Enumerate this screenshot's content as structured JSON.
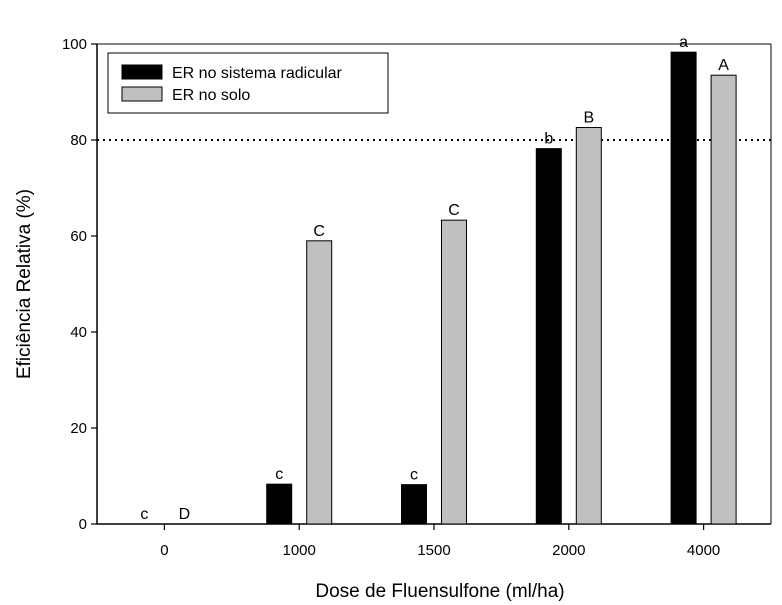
{
  "chart_data": {
    "type": "bar",
    "title": "",
    "xlabel": "Dose de Fluensulfone (ml/ha)",
    "ylabel": "Eficiência Relativa (%)",
    "ylim": [
      0,
      100
    ],
    "yticks": [
      "0",
      "20",
      "40",
      "60",
      "80",
      "100"
    ],
    "categories": [
      "0",
      "1000",
      "1500",
      "2000",
      "4000"
    ],
    "series": [
      {
        "name": "ER no sistema radicular",
        "color": "#000000",
        "values": [
          0,
          8.3,
          8.2,
          78.2,
          98.3
        ],
        "letters": [
          "c",
          "c",
          "c",
          "b",
          "a"
        ]
      },
      {
        "name": "ER no solo",
        "color": "#c0c0c0",
        "values": [
          0,
          59.0,
          63.3,
          82.6,
          93.5
        ],
        "letters": [
          "D",
          "C",
          "C",
          "B",
          "A"
        ]
      }
    ],
    "reference_line": {
      "value": 80,
      "style": "dotted"
    },
    "legend_position": "top-left",
    "grid": false
  }
}
